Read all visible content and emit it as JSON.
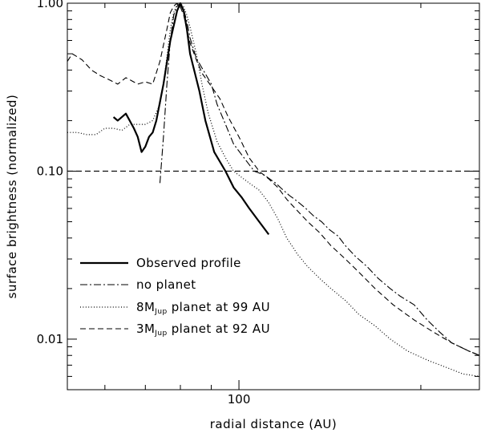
{
  "chart_data": {
    "type": "line",
    "xscale": "log",
    "yscale": "log",
    "xlim": [
      52,
      250
    ],
    "ylim": [
      0.005,
      1.0
    ],
    "xlabel": "radial distance (AU)",
    "ylabel": "surface brightness (normalized)",
    "x_ticks": [
      {
        "value": 100,
        "label": "100"
      }
    ],
    "y_ticks": [
      {
        "value": 1.0,
        "label": "1.00"
      },
      {
        "value": 0.1,
        "label": "0.10"
      },
      {
        "value": 0.01,
        "label": "0.01"
      }
    ],
    "reference_line": {
      "y": 0.1,
      "style": "dashed"
    },
    "legend": {
      "position": "lower-left",
      "entries": [
        {
          "series": 0,
          "parts": [
            {
              "text": "Observed profile"
            }
          ]
        },
        {
          "series": 1,
          "parts": [
            {
              "text": "no planet"
            }
          ]
        },
        {
          "series": 2,
          "parts": [
            {
              "text": "8M"
            },
            {
              "text": "Jup",
              "sub": true
            },
            {
              "text": " planet at 99 AU"
            }
          ]
        },
        {
          "series": 3,
          "parts": [
            {
              "text": "3M"
            },
            {
              "text": "Jup",
              "sub": true
            },
            {
              "text": " planet at 92 AU"
            }
          ]
        }
      ]
    },
    "series": [
      {
        "name": "Observed profile",
        "style": "solid",
        "x": [
          62,
          63,
          65,
          67,
          68,
          69,
          70,
          71,
          72,
          73,
          75,
          77,
          79,
          80,
          81,
          82,
          83,
          86,
          88,
          91,
          95,
          98,
          101,
          104,
          108,
          112
        ],
        "y": [
          0.21,
          0.2,
          0.22,
          0.18,
          0.16,
          0.13,
          0.14,
          0.16,
          0.17,
          0.2,
          0.33,
          0.6,
          0.9,
          1.0,
          0.9,
          0.7,
          0.5,
          0.3,
          0.2,
          0.13,
          0.1,
          0.08,
          0.07,
          0.06,
          0.05,
          0.042
        ]
      },
      {
        "name": "no planet",
        "style": "dashdot",
        "x": [
          74,
          75,
          76,
          77,
          78,
          79,
          80,
          81,
          82,
          83,
          85,
          88,
          90,
          92,
          95,
          98,
          102,
          106,
          110,
          115,
          118,
          121,
          125,
          129,
          133,
          137,
          141,
          146,
          150,
          156,
          163,
          170,
          178,
          185,
          195,
          205,
          215,
          225,
          240,
          250
        ],
        "y": [
          0.085,
          0.16,
          0.33,
          0.6,
          0.85,
          0.96,
          1.0,
          0.92,
          0.78,
          0.62,
          0.47,
          0.38,
          0.33,
          0.25,
          0.19,
          0.145,
          0.12,
          0.1,
          0.095,
          0.085,
          0.078,
          0.072,
          0.066,
          0.06,
          0.054,
          0.05,
          0.045,
          0.041,
          0.036,
          0.031,
          0.027,
          0.023,
          0.02,
          0.018,
          0.016,
          0.013,
          0.011,
          0.0095,
          0.0085,
          0.008
        ]
      },
      {
        "name": "8MJup planet at 99 AU",
        "style": "dotted",
        "x": [
          52,
          54,
          56,
          58,
          60,
          62,
          64,
          66,
          68,
          70,
          72,
          74,
          75,
          76,
          77,
          78,
          79,
          80,
          81,
          82,
          83,
          85,
          87,
          89,
          92,
          95,
          98,
          101,
          104,
          108,
          112,
          116,
          120,
          125,
          130,
          136,
          142,
          150,
          158,
          168,
          178,
          190,
          205,
          220,
          235,
          250
        ],
        "y": [
          0.17,
          0.17,
          0.165,
          0.165,
          0.18,
          0.18,
          0.175,
          0.19,
          0.19,
          0.19,
          0.2,
          0.25,
          0.33,
          0.48,
          0.7,
          0.88,
          0.98,
          1.0,
          0.95,
          0.85,
          0.72,
          0.5,
          0.32,
          0.22,
          0.15,
          0.12,
          0.1,
          0.092,
          0.085,
          0.077,
          0.065,
          0.052,
          0.04,
          0.032,
          0.027,
          0.023,
          0.02,
          0.017,
          0.014,
          0.012,
          0.01,
          0.0085,
          0.0075,
          0.0068,
          0.0062,
          0.006
        ]
      },
      {
        "name": "3MJup planet at 92 AU",
        "style": "dashed",
        "x": [
          52,
          53,
          55,
          57,
          59,
          61,
          63,
          65,
          66,
          68,
          70,
          72,
          74,
          76,
          77,
          78,
          79,
          80,
          81,
          82,
          83,
          85,
          87,
          90,
          93,
          96,
          100,
          104,
          108,
          112,
          116,
          120,
          125,
          130,
          136,
          142,
          150,
          158,
          168,
          180,
          195,
          210,
          225,
          240,
          250
        ],
        "y": [
          0.45,
          0.5,
          0.46,
          0.4,
          0.37,
          0.35,
          0.33,
          0.36,
          0.35,
          0.33,
          0.34,
          0.33,
          0.45,
          0.7,
          0.88,
          0.96,
          1.0,
          0.95,
          0.85,
          0.7,
          0.58,
          0.46,
          0.38,
          0.32,
          0.27,
          0.21,
          0.16,
          0.12,
          0.1,
          0.09,
          0.08,
          0.068,
          0.058,
          0.05,
          0.043,
          0.036,
          0.03,
          0.025,
          0.02,
          0.016,
          0.013,
          0.011,
          0.0095,
          0.0085,
          0.008
        ]
      }
    ]
  }
}
